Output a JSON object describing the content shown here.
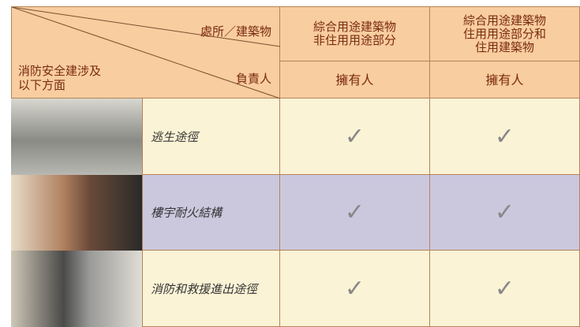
{
  "table": {
    "corner": {
      "top": "處所／建築物",
      "middle": [
        "消防安全建涉及",
        "以下方面"
      ],
      "bottom": "負責人"
    },
    "columns": [
      {
        "title": [
          "綜合用途建築物",
          "非住用用途部分"
        ],
        "owner": "擁有人"
      },
      {
        "title": [
          "綜合用途建築物",
          "住用用途部分和",
          "住用建築物"
        ],
        "owner": "擁有人"
      }
    ],
    "rows": [
      {
        "label": "逃生途徑",
        "cells": [
          "✓",
          "✓"
        ]
      },
      {
        "label": "樓宇耐火結構",
        "cells": [
          "✓",
          "✓"
        ]
      },
      {
        "label": "消防和救援進出途徑",
        "cells": [
          "✓",
          "✓"
        ]
      }
    ]
  }
}
